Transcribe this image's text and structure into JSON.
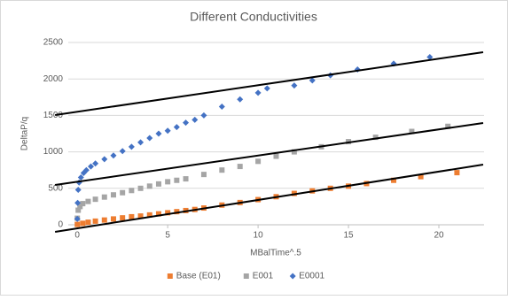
{
  "chart_data": {
    "type": "scatter",
    "title": "Different Conductivities",
    "x_label": "MBalTime^.5",
    "y_label": "DeltaP/q",
    "xlim": [
      -0.5,
      22.5
    ],
    "ylim": [
      0,
      2500
    ],
    "xticks": [
      0,
      5,
      10,
      15,
      20
    ],
    "yticks": [
      0,
      500,
      1000,
      1500,
      2000,
      2500
    ],
    "grid": true,
    "legend": "bottom",
    "series": [
      {
        "name": "Base (E01)",
        "color": "#ed7d31",
        "marker": "square",
        "x": [
          0,
          0.3,
          0.6,
          1,
          1.5,
          2,
          2.5,
          3,
          3.5,
          4,
          4.5,
          5,
          5.5,
          6,
          6.5,
          7,
          8,
          9,
          10,
          11,
          12,
          13,
          14,
          15,
          16,
          17.5,
          19,
          21
        ],
        "values": [
          5,
          20,
          35,
          50,
          65,
          80,
          95,
          110,
          120,
          135,
          150,
          165,
          180,
          195,
          210,
          230,
          270,
          305,
          345,
          385,
          430,
          465,
          500,
          530,
          565,
          610,
          660,
          715
        ]
      },
      {
        "name": "E001",
        "color": "#a5a5a5",
        "marker": "square",
        "x": [
          0,
          0.05,
          0.15,
          0.3,
          0.6,
          1,
          1.5,
          2,
          2.5,
          3,
          3.5,
          4,
          4.5,
          5,
          5.5,
          6,
          7,
          8,
          9,
          10,
          11,
          12,
          13.5,
          15,
          16.5,
          18.5,
          20.5
        ],
        "values": [
          90,
          200,
          250,
          290,
          320,
          350,
          380,
          410,
          440,
          470,
          500,
          530,
          560,
          590,
          610,
          630,
          690,
          750,
          800,
          870,
          940,
          1000,
          1070,
          1140,
          1200,
          1280,
          1350
        ]
      },
      {
        "name": "E0001",
        "color": "#4472c4",
        "marker": "diamond",
        "x": [
          0,
          0.02,
          0.05,
          0.1,
          0.2,
          0.35,
          0.5,
          0.75,
          1,
          1.5,
          2,
          2.5,
          3,
          3.5,
          4,
          4.5,
          5,
          5.5,
          6,
          6.5,
          7,
          8,
          9,
          10,
          10.5,
          12,
          13,
          14,
          15.5,
          17.5,
          19.5
        ],
        "values": [
          80,
          300,
          480,
          580,
          650,
          710,
          750,
          800,
          840,
          900,
          950,
          1010,
          1070,
          1130,
          1190,
          1250,
          1290,
          1340,
          1400,
          1440,
          1500,
          1620,
          1720,
          1810,
          1870,
          1910,
          1980,
          2050,
          2130,
          2210,
          2300
        ]
      }
    ],
    "trendlines": [
      {
        "color": "#000000",
        "x": [
          -1.23,
          22.45
        ],
        "values": [
          1505,
          2367
        ]
      },
      {
        "color": "#000000",
        "x": [
          -1.23,
          22.45
        ],
        "values": [
          546,
          1396
        ]
      },
      {
        "color": "#000000",
        "x": [
          -1.23,
          22.45
        ],
        "values": [
          -97,
          825
        ]
      }
    ]
  }
}
